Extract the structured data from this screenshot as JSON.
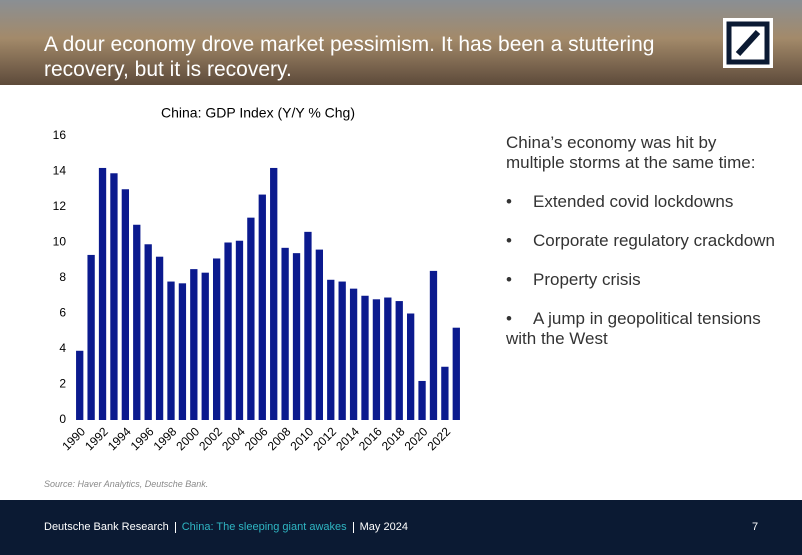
{
  "header": {
    "title_lines": [
      "A dour economy drove market pessimism. It has been a stuttering",
      "recovery, but it is recovery."
    ]
  },
  "chart_data": {
    "type": "bar",
    "title": "China: GDP Index (Y/Y % Chg)",
    "categories": [
      "1990",
      null,
      "1992",
      null,
      "1994",
      null,
      "1996",
      null,
      "1998",
      null,
      "2000",
      null,
      "2002",
      null,
      "2004",
      null,
      "2006",
      null,
      "2008",
      null,
      "2010",
      null,
      "2012",
      null,
      "2014",
      null,
      "2016",
      null,
      "2018",
      null,
      "2020",
      null,
      "2022",
      null
    ],
    "values": [
      3.9,
      9.3,
      14.2,
      13.9,
      13.0,
      11.0,
      9.9,
      9.2,
      7.8,
      7.7,
      8.5,
      8.3,
      9.1,
      10.0,
      10.1,
      11.4,
      12.7,
      14.2,
      9.7,
      9.4,
      10.6,
      9.6,
      7.9,
      7.8,
      7.4,
      7.0,
      6.8,
      6.9,
      6.7,
      6.0,
      2.2,
      8.4,
      3.0,
      5.2
    ],
    "color": "#0b1a8e",
    "ylim": [
      0,
      16
    ],
    "yticks": [
      0,
      2,
      4,
      6,
      8,
      10,
      12,
      14,
      16
    ],
    "grid": false
  },
  "commentary": {
    "intro": "China’s economy was hit by multiple storms at the same time:",
    "bullets": [
      "Extended covid lockdowns",
      "Corporate regulatory crackdown",
      "Property crisis",
      "A jump in geopolitical tensions with the West"
    ]
  },
  "source": "Source: Haver Analytics, Deutsche Bank.",
  "footer": {
    "items": [
      "Deutsche Bank Research",
      "China: The sleeping giant awakes",
      "May 2024"
    ],
    "page": "7"
  }
}
